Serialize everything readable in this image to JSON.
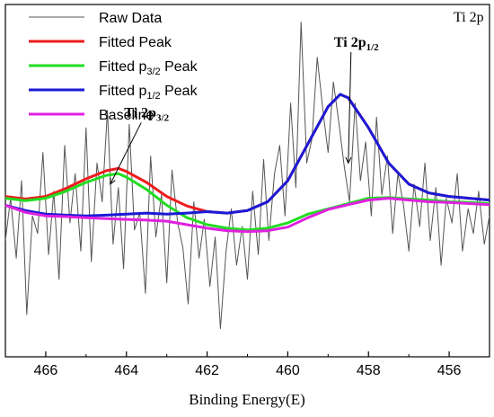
{
  "chart_data": {
    "type": "line",
    "title": "",
    "corner_label": "Ti 2p",
    "xlabel": "Binding Energy(E)",
    "ylabel": "",
    "x_reversed": true,
    "xlim": [
      467,
      455
    ],
    "ylim": [
      0,
      100
    ],
    "xticks": [
      466,
      464,
      462,
      460,
      458,
      456
    ],
    "legend_position": "top-left",
    "series": [
      {
        "name": "Raw Data",
        "color": "#555555",
        "x": [
          467.0,
          466.87,
          466.73,
          466.6,
          466.47,
          466.33,
          466.2,
          466.07,
          465.93,
          465.8,
          465.67,
          465.53,
          465.4,
          465.27,
          465.13,
          465.0,
          464.87,
          464.73,
          464.6,
          464.47,
          464.33,
          464.2,
          464.07,
          463.93,
          463.8,
          463.67,
          463.53,
          463.4,
          463.27,
          463.13,
          463.0,
          462.87,
          462.73,
          462.6,
          462.47,
          462.33,
          462.2,
          462.07,
          461.93,
          461.8,
          461.67,
          461.53,
          461.4,
          461.27,
          461.13,
          461.0,
          460.87,
          460.73,
          460.6,
          460.47,
          460.33,
          460.2,
          460.07,
          459.93,
          459.8,
          459.67,
          459.53,
          459.4,
          459.27,
          459.13,
          459.0,
          458.87,
          458.73,
          458.6,
          458.47,
          458.33,
          458.2,
          458.07,
          457.93,
          457.8,
          457.67,
          457.53,
          457.4,
          457.27,
          457.13,
          457.0,
          456.87,
          456.73,
          456.6,
          456.47,
          456.33,
          456.2,
          456.07,
          455.93,
          455.8,
          455.67,
          455.53,
          455.4,
          455.27,
          455.13,
          455.0
        ],
        "y": [
          33,
          45,
          28,
          50,
          12,
          40,
          35,
          58,
          29,
          47,
          22,
          60,
          38,
          52,
          30,
          65,
          27,
          55,
          44,
          70,
          32,
          48,
          25,
          66,
          36,
          41,
          18,
          57,
          34,
          46,
          21,
          53,
          38,
          31,
          15,
          44,
          28,
          39,
          20,
          34,
          8,
          30,
          42,
          26,
          37,
          22,
          47,
          29,
          56,
          33,
          52,
          60,
          40,
          72,
          48,
          95,
          55,
          62,
          85,
          70,
          58,
          78,
          66,
          54,
          44,
          72,
          50,
          61,
          40,
          68,
          46,
          57,
          35,
          52,
          43,
          30,
          49,
          37,
          55,
          33,
          48,
          26,
          45,
          38,
          52,
          30,
          42,
          35,
          47,
          32,
          40
        ]
      },
      {
        "name": "Fitted Peak",
        "color": "#ee1c1c",
        "x": [
          467.0,
          466.5,
          466.0,
          465.5,
          465.0,
          464.5,
          464.2,
          464.0,
          463.5,
          463.0,
          462.5,
          462.0,
          461.5,
          461.0,
          460.5,
          460.0,
          459.5,
          459.0,
          458.7,
          458.5,
          458.0,
          457.5,
          457.0,
          456.5,
          456.0,
          455.5,
          455.0
        ],
        "y": [
          45.5,
          44.8,
          45.5,
          47.8,
          50.5,
          52.8,
          53.5,
          52.6,
          49.5,
          45.5,
          42.8,
          41.2,
          40.8,
          41.5,
          44.0,
          50.0,
          60.5,
          71.0,
          74.5,
          73.5,
          65.0,
          55.0,
          49.0,
          46.5,
          45.5,
          45.0,
          44.5
        ]
      },
      {
        "name": "Fitted p<sub>3/2</sub> Peak",
        "label_main": "Fitted p",
        "label_sub": "3/2",
        "label_tail": " Peak",
        "color": "#22dd22",
        "x": [
          467.0,
          466.5,
          466.0,
          465.5,
          465.0,
          464.5,
          464.2,
          464.0,
          463.5,
          463.0,
          462.5,
          462.0,
          461.5,
          461.0,
          460.5,
          460.0,
          459.5,
          459.0,
          458.5,
          458.0,
          457.5,
          457.0,
          456.5,
          456.0,
          455.5,
          455.0
        ],
        "y": [
          45.0,
          44.3,
          45.0,
          47.0,
          49.5,
          51.5,
          52.0,
          51.0,
          47.5,
          43.0,
          39.5,
          37.5,
          36.5,
          36.0,
          36.5,
          38.0,
          40.5,
          42.0,
          43.5,
          45.0,
          45.2,
          44.8,
          44.5,
          44.0,
          43.8,
          43.5
        ]
      },
      {
        "name": "Fitted p<sub>1/2</sub> Peak",
        "label_main": "Fitted p",
        "label_sub": "1/2",
        "label_tail": " Peak",
        "color": "#1a1ad6",
        "x": [
          467.0,
          466.5,
          466.0,
          465.5,
          465.0,
          464.5,
          464.0,
          463.5,
          463.0,
          462.5,
          462.0,
          461.5,
          461.0,
          460.5,
          460.0,
          459.5,
          459.0,
          458.7,
          458.5,
          458.0,
          457.5,
          457.0,
          456.5,
          456.0,
          455.5,
          455.0
        ],
        "y": [
          43.0,
          41.5,
          40.5,
          40.2,
          40.0,
          40.2,
          40.5,
          40.8,
          40.5,
          40.8,
          41.2,
          40.8,
          41.5,
          44.0,
          50.0,
          60.5,
          71.0,
          74.5,
          73.5,
          65.0,
          55.0,
          49.0,
          46.5,
          45.5,
          45.0,
          44.5
        ]
      },
      {
        "name": "Baseline",
        "color": "#e020e0",
        "x": [
          467.0,
          466.5,
          466.0,
          465.5,
          465.0,
          464.5,
          464.0,
          463.5,
          463.0,
          462.5,
          462.0,
          461.5,
          461.0,
          460.5,
          460.0,
          459.5,
          459.0,
          458.5,
          458.0,
          457.5,
          457.0,
          456.5,
          456.0,
          455.5,
          455.0
        ],
        "y": [
          43.0,
          41.0,
          40.0,
          39.8,
          39.5,
          39.2,
          39.0,
          38.8,
          38.5,
          37.5,
          36.5,
          35.8,
          35.5,
          35.8,
          36.8,
          39.5,
          41.8,
          43.2,
          44.5,
          45.0,
          44.5,
          44.0,
          43.8,
          43.5,
          43.2
        ]
      }
    ],
    "annotations": [
      {
        "main": "Ti 2p",
        "sub": "3/2",
        "text_x": 463.5,
        "text_y": 68,
        "arrow_to_x": 464.4,
        "arrow_to_y": 49
      },
      {
        "main": "Ti 2p",
        "sub": "1/2",
        "text_x": 458.3,
        "text_y": 88,
        "arrow_to_x": 458.5,
        "arrow_to_y": 55
      }
    ]
  }
}
